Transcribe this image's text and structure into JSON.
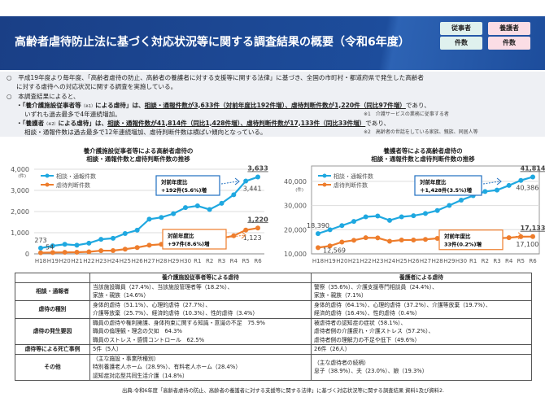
{
  "header": {
    "title": "高齢者虐待防止法に基づく対応状況等に関する調査結果の概要（令和6年度）",
    "badges": [
      "従事者",
      "養護者",
      "件数",
      "件数"
    ]
  },
  "intro": {
    "p1a": "○　平成19年度より毎年度、「高齢者虐待の防止、高齢者の養護者に対する支援等に関する法律」に基づき、全国の市町村・都道府県で発生した高齢者",
    "p1b": "に対する虐待への対応状況に関する調査を実施している。",
    "p2": "○　本調査結果によると、",
    "b1_pre": "・「養介護施設従事者等",
    "b1_note": "（※1）",
    "b1_mid": "による虐待」は、",
    "b1_u": "相談・通報件数が3,633件（対前年度比192件増）、虐待判断件数が1,220件（同比97件増）",
    "b1_post": "であり、",
    "b1_line2": "いずれも過去最多で4年連続増加。",
    "note1": "※1　介護サービスの業務に従事する者",
    "b2_pre": "・「養護者",
    "b2_note": "（※2）",
    "b2_mid": "による虐待」は、",
    "b2_u": "相談・通報件数が41,814件（同比1,428件増）、虐待判断件数が17,133件（同比33件増）",
    "b2_post": "であり、",
    "b2_line2": "相談・通報件数は過去最多で12年連続増加、虐待判断件数は横ばい傾向となっている。",
    "note2": "※2　高齢者の世話をしている家族、親族、同居人等"
  },
  "chart_data": [
    {
      "type": "line",
      "title": "養介護施設従事者等による高齢者虐待の\n相談・通報件数と虐待判断件数の推移",
      "title_l1": "養介護施設従事者等による高齢者虐待の",
      "title_l2": "相談・通報件数と虐待判断件数の推移",
      "ylabel": "(件)",
      "ylim": [
        0,
        4000
      ],
      "yticks": [
        "0",
        "1,000",
        "2,000",
        "3,000",
        "4,000"
      ],
      "grid": true,
      "legend": "top-left",
      "categories": [
        "H18",
        "H19",
        "H20",
        "H21",
        "H22",
        "H23",
        "H24",
        "H25",
        "H26",
        "H27",
        "H28",
        "H29",
        "H30",
        "R1",
        "R2",
        "R3",
        "R4",
        "R5",
        "R6"
      ],
      "series": [
        {
          "name": "相談・通報件数",
          "color": "#1fa8e0",
          "values": [
            273,
            379,
            451,
            408,
            506,
            687,
            736,
            962,
            1120,
            1640,
            1723,
            1898,
            2187,
            2267,
            2097,
            2390,
            2795,
            3441,
            3633
          ]
        },
        {
          "name": "虐待判断件数",
          "color": "#ee7d2c",
          "values": [
            54,
            62,
            70,
            76,
            96,
            151,
            155,
            221,
            300,
            408,
            452,
            510,
            621,
            644,
            595,
            739,
            856,
            1123,
            1220
          ]
        }
      ],
      "labels": [
        {
          "text": "273",
          "series": 0,
          "index": 0
        },
        {
          "text": "54",
          "series": 1,
          "index": 0
        },
        {
          "text": "3,633",
          "series": 0,
          "index": 18
        },
        {
          "text": "3,441",
          "series": 0,
          "index": 17
        },
        {
          "text": "1,220",
          "series": 1,
          "index": 18
        },
        {
          "text": "1,123",
          "series": 1,
          "index": 17
        }
      ],
      "annotations": [
        {
          "l1": "対前年度比",
          "l2": "+192件(5.6%)増",
          "color": "#1f6fc0"
        },
        {
          "l1": "対前年度比",
          "l2": "+97件(8.6%)増",
          "color": "#ee7d2c"
        }
      ]
    },
    {
      "type": "line",
      "title": "養護者等による高齢者虐待の\n相談・通報件数と虐待判断件数の推移",
      "title_l1": "養護者等による高齢者虐待の",
      "title_l2": "相談・通報件数と虐待判断件数の推移",
      "ylabel": "(件)",
      "ylim": [
        10000,
        45000
      ],
      "yticks": [
        "10,000",
        "20,000",
        "30,000",
        "40,000"
      ],
      "grid": true,
      "legend": "top-left",
      "categories": [
        "H18",
        "H19",
        "H20",
        "H21",
        "H22",
        "H23",
        "H24",
        "H25",
        "H26",
        "H27",
        "H28",
        "H29",
        "H30",
        "R1",
        "R2",
        "R3",
        "R4",
        "R5",
        "R6"
      ],
      "series": [
        {
          "name": "相談・通報件数",
          "color": "#1fa8e0",
          "values": [
            18390,
            19971,
            21692,
            23404,
            25315,
            25636,
            23843,
            25310,
            25791,
            26688,
            27940,
            30040,
            32231,
            34057,
            35774,
            36378,
            38291,
            40386,
            41814
          ]
        },
        {
          "name": "虐待判断件数",
          "color": "#ee7d2c",
          "values": [
            12569,
            13273,
            14889,
            15615,
            16668,
            16599,
            15202,
            15731,
            15739,
            15976,
            16384,
            17078,
            17249,
            16928,
            17281,
            16426,
            16669,
            17100,
            17133
          ]
        }
      ],
      "labels": [
        {
          "text": "18,390",
          "series": 0,
          "index": 0
        },
        {
          "text": "12,569",
          "series": 1,
          "index": 0
        },
        {
          "text": "41,814",
          "series": 0,
          "index": 18
        },
        {
          "text": "40,386",
          "series": 0,
          "index": 17
        },
        {
          "text": "17,133",
          "series": 1,
          "index": 18
        },
        {
          "text": "17,100",
          "series": 1,
          "index": 17
        }
      ],
      "annotations": [
        {
          "l1": "対前年度比",
          "l2": "＋1,428件(3.5%)増",
          "color": "#1f6fc0"
        },
        {
          "l1": "対前年度比",
          "l2": "33件(0.2%)増",
          "color": "#ee7d2c"
        }
      ]
    }
  ],
  "table": {
    "headers": [
      "",
      "養介護施設従事者等による虐待",
      "養護者による虐待"
    ],
    "rows": [
      {
        "label": "相談・通報者",
        "c1": [
          "当該施設職員（27.4%）、当該施設管理者等（18.2%）、",
          "家族・親族（14.6%）"
        ],
        "c2": [
          "警察（35.6%）、介護支援専門相談員（24.4%）、",
          "家族・親族（7.1%）"
        ]
      },
      {
        "label": "虐待の種別",
        "c1": [
          "身体的虐待（51.1%）、心理的虐待（27.7%）、",
          "介護等放棄（25.7%）、経済的虐待（10.3%）、性的虐待（3.4%）"
        ],
        "c2": [
          "身体的虐待（64.1%）、心理的虐待（37.2%）、介護等放棄（19.7%）、",
          "経済的虐待（16.4%）、性的虐待（0.4%）"
        ]
      },
      {
        "label": "虐待の発生要因",
        "c1": [
          "職員の虐待や権利擁護、身体拘束に関する知識・意識の不足　75.9%",
          "職員の倫理観・理念の欠如　64.3%",
          "職員のストレス・感情コントロール　62.5%"
        ],
        "c2": [
          "被虐待者の認知症の症状（58.1%）、",
          "虐待者側の介護疲れ・介護ストレス（57.2%）、",
          "虐待者側の理解力の不足や低下（49.6%）"
        ]
      },
      {
        "label": "虐待等による死亡事例",
        "c1": [
          "5件（5人）"
        ],
        "c2": [
          "26件（26人）"
        ]
      },
      {
        "label": "その他",
        "c1": [
          "（主な施設・事業所種別）",
          "特別養護老人ホーム（28.9%）、有料老人ホーム（28.4%）",
          "認知症対応型共同生活介護（14.8%）"
        ],
        "c2": [
          "（主な虐待者の続柄）",
          "息子（38.9%）、夫（23.0%）、娘（19.3%）"
        ]
      }
    ]
  },
  "source": "出典:令和6年度「高齢者虐待の防止、高齢者の養護者に対する支援等に関する法律」に基づく対応状況等に関する調査結果 資料1及び資料2."
}
